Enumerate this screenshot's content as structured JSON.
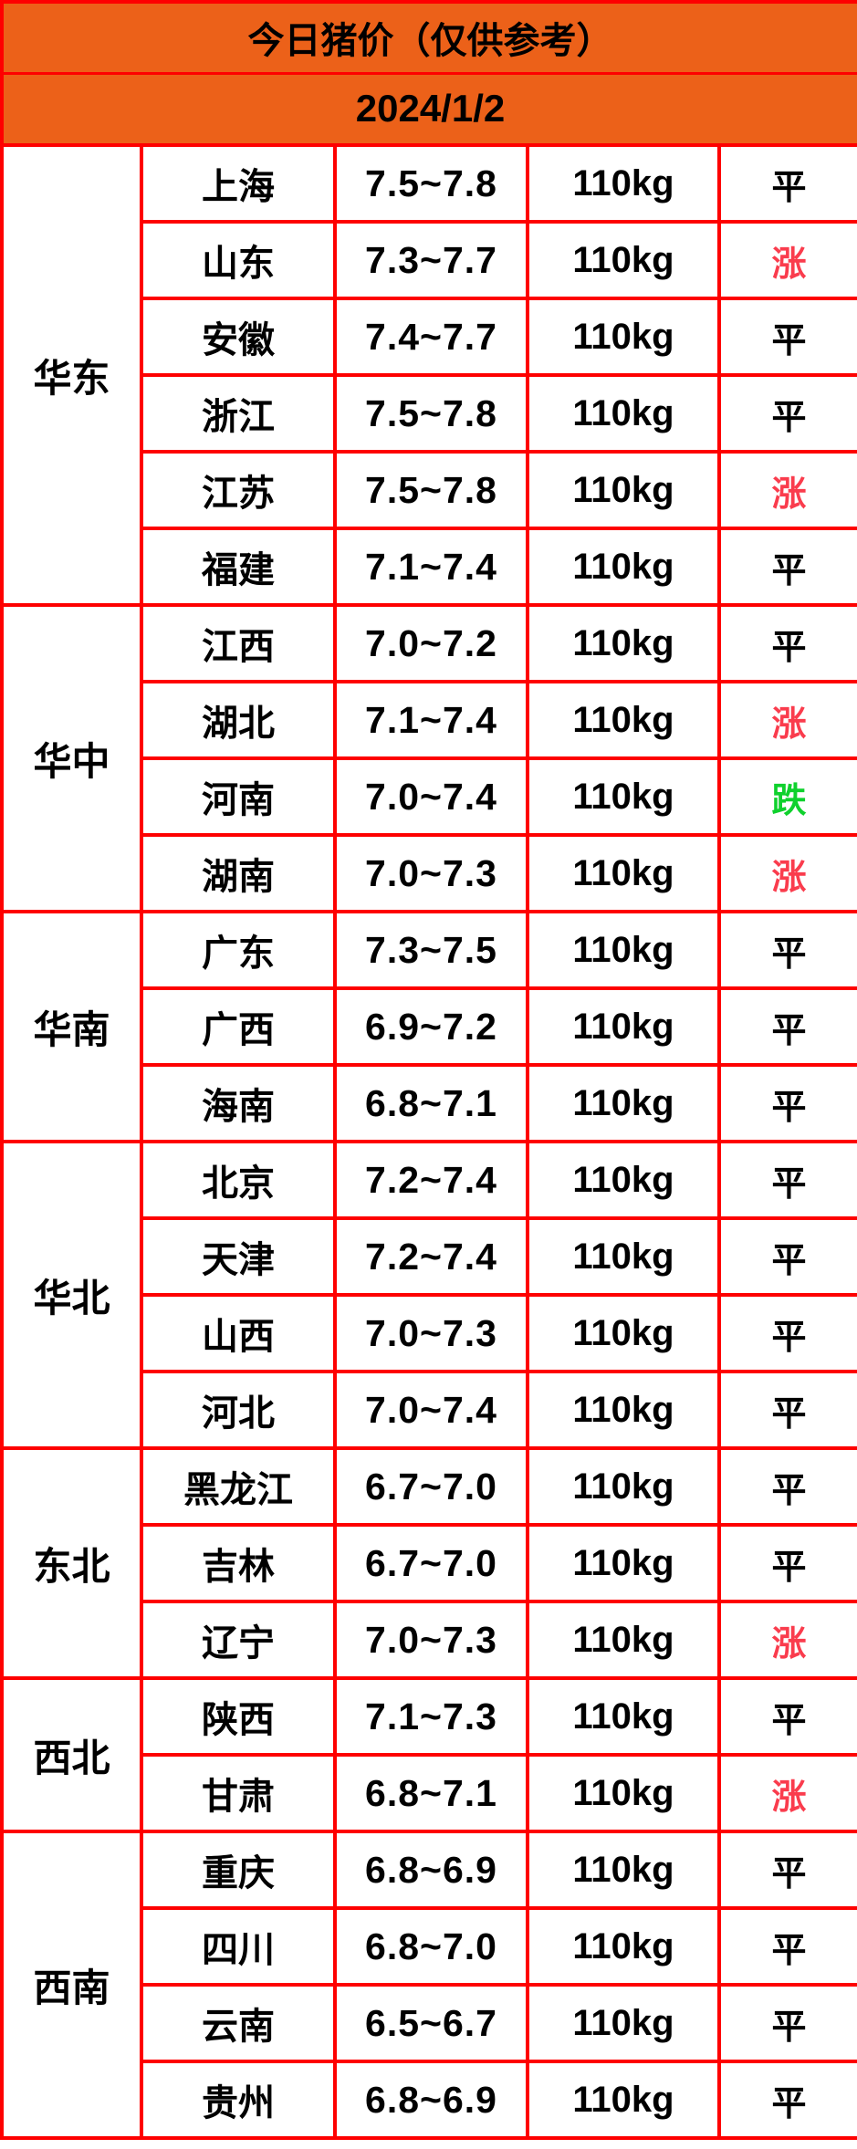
{
  "title": "今日猪价（仅供参考）",
  "date": "2024/1/2",
  "colors": {
    "header_bg": "#EC6119",
    "grid_border": "#FE0000",
    "status_up": "#FA3C4D",
    "status_down": "#0FD12D",
    "status_flat": "#000000"
  },
  "legend": {
    "up_label": "涨",
    "down_label": "跌",
    "flat_label": "平"
  },
  "regions": [
    {
      "name": "华东",
      "rows": [
        {
          "city": "上海",
          "price": "7.5~7.8",
          "weight": "110kg",
          "status": "平",
          "trend": "flat"
        },
        {
          "city": "山东",
          "price": "7.3~7.7",
          "weight": "110kg",
          "status": "涨",
          "trend": "up"
        },
        {
          "city": "安徽",
          "price": "7.4~7.7",
          "weight": "110kg",
          "status": "平",
          "trend": "flat"
        },
        {
          "city": "浙江",
          "price": "7.5~7.8",
          "weight": "110kg",
          "status": "平",
          "trend": "flat"
        },
        {
          "city": "江苏",
          "price": "7.5~7.8",
          "weight": "110kg",
          "status": "涨",
          "trend": "up"
        },
        {
          "city": "福建",
          "price": "7.1~7.4",
          "weight": "110kg",
          "status": "平",
          "trend": "flat"
        }
      ]
    },
    {
      "name": "华中",
      "rows": [
        {
          "city": "江西",
          "price": "7.0~7.2",
          "weight": "110kg",
          "status": "平",
          "trend": "flat"
        },
        {
          "city": "湖北",
          "price": "7.1~7.4",
          "weight": "110kg",
          "status": "涨",
          "trend": "up"
        },
        {
          "city": "河南",
          "price": "7.0~7.4",
          "weight": "110kg",
          "status": "跌",
          "trend": "down"
        },
        {
          "city": "湖南",
          "price": "7.0~7.3",
          "weight": "110kg",
          "status": "涨",
          "trend": "up"
        }
      ]
    },
    {
      "name": "华南",
      "rows": [
        {
          "city": "广东",
          "price": "7.3~7.5",
          "weight": "110kg",
          "status": "平",
          "trend": "flat"
        },
        {
          "city": "广西",
          "price": "6.9~7.2",
          "weight": "110kg",
          "status": "平",
          "trend": "flat"
        },
        {
          "city": "海南",
          "price": "6.8~7.1",
          "weight": "110kg",
          "status": "平",
          "trend": "flat"
        }
      ]
    },
    {
      "name": "华北",
      "rows": [
        {
          "city": "北京",
          "price": "7.2~7.4",
          "weight": "110kg",
          "status": "平",
          "trend": "flat"
        },
        {
          "city": "天津",
          "price": "7.2~7.4",
          "weight": "110kg",
          "status": "平",
          "trend": "flat"
        },
        {
          "city": "山西",
          "price": "7.0~7.3",
          "weight": "110kg",
          "status": "平",
          "trend": "flat"
        },
        {
          "city": "河北",
          "price": "7.0~7.4",
          "weight": "110kg",
          "status": "平",
          "trend": "flat"
        }
      ]
    },
    {
      "name": "东北",
      "rows": [
        {
          "city": "黑龙江",
          "price": "6.7~7.0",
          "weight": "110kg",
          "status": "平",
          "trend": "flat"
        },
        {
          "city": "吉林",
          "price": "6.7~7.0",
          "weight": "110kg",
          "status": "平",
          "trend": "flat"
        },
        {
          "city": "辽宁",
          "price": "7.0~7.3",
          "weight": "110kg",
          "status": "涨",
          "trend": "up"
        }
      ]
    },
    {
      "name": "西北",
      "rows": [
        {
          "city": "陕西",
          "price": "7.1~7.3",
          "weight": "110kg",
          "status": "平",
          "trend": "flat"
        },
        {
          "city": "甘肃",
          "price": "6.8~7.1",
          "weight": "110kg",
          "status": "涨",
          "trend": "up"
        }
      ]
    },
    {
      "name": "西南",
      "rows": [
        {
          "city": "重庆",
          "price": "6.8~6.9",
          "weight": "110kg",
          "status": "平",
          "trend": "flat"
        },
        {
          "city": "四川",
          "price": "6.8~7.0",
          "weight": "110kg",
          "status": "平",
          "trend": "flat"
        },
        {
          "city": "云南",
          "price": "6.5~6.7",
          "weight": "110kg",
          "status": "平",
          "trend": "flat"
        },
        {
          "city": "贵州",
          "price": "6.8~6.9",
          "weight": "110kg",
          "status": "平",
          "trend": "flat"
        }
      ]
    }
  ]
}
